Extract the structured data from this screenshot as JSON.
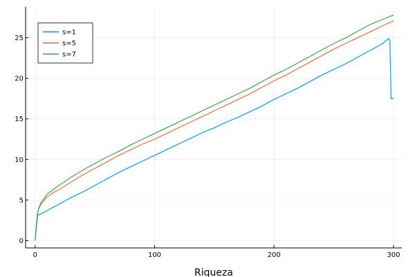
{
  "chart_data": {
    "type": "line",
    "title": "",
    "xlabel": "Riqueza",
    "ylabel": "",
    "xlim": [
      -8,
      307
    ],
    "ylim": [
      -0.9,
      28.8
    ],
    "xticks": [
      0,
      100,
      200,
      300
    ],
    "xtick_labels": [
      "0",
      "100",
      "200",
      "300"
    ],
    "yticks": [
      0,
      5,
      10,
      15,
      20,
      25
    ],
    "ytick_labels": [
      "0",
      "5",
      "10",
      "15",
      "20",
      "25"
    ],
    "grid": true,
    "legend_position": "top-left",
    "series": [
      {
        "name": "s=1",
        "color": "#009AFA",
        "x": [
          0,
          1,
          2,
          3,
          5,
          10,
          20,
          30,
          40,
          50,
          60,
          70,
          80,
          90,
          100,
          110,
          120,
          130,
          140,
          150,
          160,
          170,
          180,
          190,
          200,
          210,
          220,
          230,
          240,
          250,
          260,
          270,
          280,
          290,
          295,
          296,
          297,
          298,
          299,
          300
        ],
        "y": [
          0,
          1.5,
          3.0,
          3.2,
          3.3,
          3.7,
          4.5,
          5.3,
          6.0,
          6.8,
          7.6,
          8.4,
          9.1,
          9.8,
          10.5,
          11.2,
          11.9,
          12.6,
          13.3,
          13.9,
          14.6,
          15.2,
          15.9,
          16.6,
          17.4,
          18.1,
          18.8,
          19.6,
          20.4,
          21.1,
          21.8,
          22.6,
          23.4,
          24.2,
          24.8,
          24.9,
          24.6,
          17.5,
          17.5,
          17.5
        ]
      },
      {
        "name": "s=5",
        "color": "#E26F46",
        "x": [
          0,
          1,
          2,
          3,
          5,
          10,
          15,
          20,
          30,
          40,
          50,
          60,
          70,
          80,
          90,
          100,
          110,
          120,
          130,
          140,
          150,
          160,
          170,
          180,
          190,
          200,
          210,
          220,
          230,
          240,
          250,
          260,
          270,
          280,
          290,
          300
        ],
        "y": [
          0,
          1.8,
          3.3,
          3.9,
          4.5,
          5.4,
          5.9,
          6.3,
          7.2,
          8.1,
          8.9,
          9.7,
          10.5,
          11.2,
          11.9,
          12.5,
          13.2,
          13.9,
          14.6,
          15.3,
          16.0,
          16.7,
          17.4,
          18.1,
          18.9,
          19.7,
          20.4,
          21.2,
          22.0,
          22.8,
          23.6,
          24.3,
          25.0,
          25.7,
          26.4,
          27.1
        ]
      },
      {
        "name": "s=7",
        "color": "#3EA44E",
        "x": [
          0,
          1,
          2,
          3,
          5,
          10,
          15,
          20,
          30,
          40,
          50,
          60,
          70,
          80,
          90,
          100,
          110,
          120,
          130,
          140,
          150,
          160,
          170,
          180,
          190,
          200,
          210,
          220,
          230,
          240,
          250,
          260,
          270,
          280,
          290,
          300
        ],
        "y": [
          0,
          1.9,
          3.4,
          4.0,
          4.7,
          5.7,
          6.3,
          6.8,
          7.8,
          8.7,
          9.5,
          10.3,
          11.0,
          11.8,
          12.5,
          13.2,
          13.9,
          14.6,
          15.3,
          16.0,
          16.7,
          17.4,
          18.1,
          18.8,
          19.6,
          20.4,
          21.1,
          21.9,
          22.7,
          23.5,
          24.3,
          25.0,
          25.8,
          26.6,
          27.2,
          27.8
        ]
      }
    ]
  }
}
